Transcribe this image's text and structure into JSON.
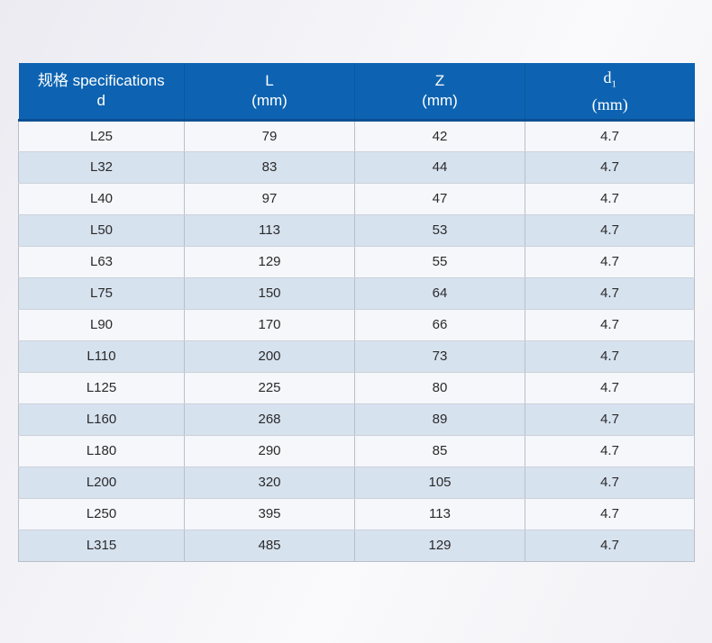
{
  "colors": {
    "header_bg": "#0d63b1",
    "header_border_bottom": "#0b4f94",
    "header_divider": "#0a57a0",
    "header_text": "#ffffff",
    "row_white_bg": "#f5f7fa",
    "row_blue_bg": "#d7e2ef",
    "col_border": "#b9bfc9",
    "row_border": "#ccd1da",
    "body_text": "#2a2a2a"
  },
  "table": {
    "headers": [
      {
        "line1": "规格 specifications",
        "line2": "d"
      },
      {
        "line1": "L",
        "line2": "(mm)"
      },
      {
        "line1": "Z",
        "line2": "(mm)"
      },
      {
        "line1": "d",
        "sub": "1",
        "line2": "(mm)"
      }
    ],
    "rows": [
      [
        "L25",
        "79",
        "42",
        "4.7"
      ],
      [
        "L32",
        "83",
        "44",
        "4.7"
      ],
      [
        "L40",
        "97",
        "47",
        "4.7"
      ],
      [
        "L50",
        "113",
        "53",
        "4.7"
      ],
      [
        "L63",
        "129",
        "55",
        "4.7"
      ],
      [
        "L75",
        "150",
        "64",
        "4.7"
      ],
      [
        "L90",
        "170",
        "66",
        "4.7"
      ],
      [
        "L110",
        "200",
        "73",
        "4.7"
      ],
      [
        "L125",
        "225",
        "80",
        "4.7"
      ],
      [
        "L160",
        "268",
        "89",
        "4.7"
      ],
      [
        "L180",
        "290",
        "85",
        "4.7"
      ],
      [
        "L200",
        "320",
        "105",
        "4.7"
      ],
      [
        "L250",
        "395",
        "113",
        "4.7"
      ],
      [
        "L315",
        "485",
        "129",
        "4.7"
      ]
    ]
  },
  "chart_data": {
    "type": "table",
    "title": "",
    "columns": [
      "规格 specifications d",
      "L (mm)",
      "Z (mm)",
      "d1 (mm)"
    ],
    "rows": [
      [
        "L25",
        79,
        42,
        4.7
      ],
      [
        "L32",
        83,
        44,
        4.7
      ],
      [
        "L40",
        97,
        47,
        4.7
      ],
      [
        "L50",
        113,
        53,
        4.7
      ],
      [
        "L63",
        129,
        55,
        4.7
      ],
      [
        "L75",
        150,
        64,
        4.7
      ],
      [
        "L90",
        170,
        66,
        4.7
      ],
      [
        "L110",
        200,
        73,
        4.7
      ],
      [
        "L125",
        225,
        80,
        4.7
      ],
      [
        "L160",
        268,
        89,
        4.7
      ],
      [
        "L180",
        290,
        85,
        4.7
      ],
      [
        "L200",
        320,
        105,
        4.7
      ],
      [
        "L250",
        395,
        113,
        4.7
      ],
      [
        "L315",
        485,
        129,
        4.7
      ]
    ]
  }
}
